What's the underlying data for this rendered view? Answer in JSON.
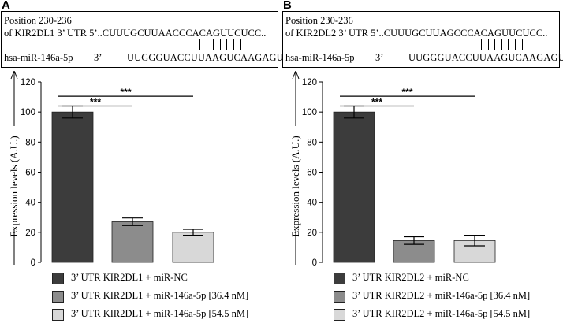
{
  "panels": [
    {
      "letter": "A",
      "sequence": {
        "position": "Position 230-236",
        "utr_line": "of KIR2DL1 3’ UTR 5’..CUUUGCUUAACCCACAGUUCUCC..",
        "mirna_name": "hsa-miR-146a-5p",
        "mirna_prime": "3’",
        "mirna_seq": "UUGGGUACCUUAAGUCAAGAGU",
        "pair_count": 7
      },
      "legend": [
        {
          "label": "3’ UTR KIR2DL1 +  miR-NC",
          "color": "#3c3c3c"
        },
        {
          "label": "3’ UTR KIR2DL1 +  miR-146a-5p [36.4 nM]",
          "color": "#8c8c8c"
        },
        {
          "label": "3’ UTR KIR2DL1 +  miR-146a-5p  [54.5 nM]",
          "color": "#d8d8d8"
        }
      ]
    },
    {
      "letter": "B",
      "sequence": {
        "position": "Position 230-236",
        "utr_line": "of KIR2DL2 3’ UTR 5’..CUUUGCUUAGCCCACAGUUCUCC..",
        "mirna_name": "hsa-miR-146a-5p",
        "mirna_prime": "3’",
        "mirna_seq": "UUGGGUACCUUAAGUCAAGAGU",
        "pair_count": 7
      },
      "legend": [
        {
          "label": "3’ UTR KIR2DL2 +  miR-NC",
          "color": "#3c3c3c"
        },
        {
          "label": "3’ UTR KIR2DL2 +  miR-146a-5p [36.4 nM]",
          "color": "#8c8c8c"
        },
        {
          "label": "3’ UTR KIR2DL2 +  miR-146a-5p  [54.5 nM]",
          "color": "#d8d8d8"
        }
      ]
    }
  ],
  "chart_data": [
    {
      "type": "bar",
      "panel": "A",
      "title": "",
      "xlabel": "",
      "ylabel": "Expression levels (A.U.)",
      "ylim": [
        0,
        120
      ],
      "yticks": [
        "0",
        "20",
        "40",
        "60",
        "80",
        "100",
        "120"
      ],
      "grid": false,
      "categories": [
        "3’ UTR KIR2DL1 +  miR-NC",
        "3’ UTR KIR2DL1 +  miR-146a-5p [36.4 nM]",
        "3’ UTR KIR2DL1 +  miR-146a-5p  [54.5 nM]"
      ],
      "values": [
        100,
        27,
        20
      ],
      "errors": [
        4,
        2.5,
        2
      ],
      "colors": [
        "#3c3c3c",
        "#8c8c8c",
        "#d8d8d8"
      ],
      "significance": [
        {
          "from": 0,
          "to": 1,
          "label": "***"
        },
        {
          "from": 0,
          "to": 2,
          "label": "***"
        }
      ],
      "legend_position": "bottom"
    },
    {
      "type": "bar",
      "panel": "B",
      "title": "",
      "xlabel": "",
      "ylabel": "Expression levels (A.U.)",
      "ylim": [
        0,
        120
      ],
      "yticks": [
        "0",
        "20",
        "40",
        "60",
        "80",
        "100",
        "120"
      ],
      "grid": false,
      "categories": [
        "3’ UTR KIR2DL2 +  miR-NC",
        "3’ UTR KIR2DL2 +  miR-146a-5p [36.4 nM]",
        "3’ UTR KIR2DL2 +  miR-146a-5p  [54.5 nM]"
      ],
      "values": [
        100,
        14.5,
        14.5
      ],
      "errors": [
        4,
        2.5,
        3.5
      ],
      "colors": [
        "#3c3c3c",
        "#8c8c8c",
        "#d8d8d8"
      ],
      "significance": [
        {
          "from": 0,
          "to": 1,
          "label": "***"
        },
        {
          "from": 0,
          "to": 2,
          "label": "***"
        }
      ],
      "legend_position": "bottom"
    }
  ]
}
